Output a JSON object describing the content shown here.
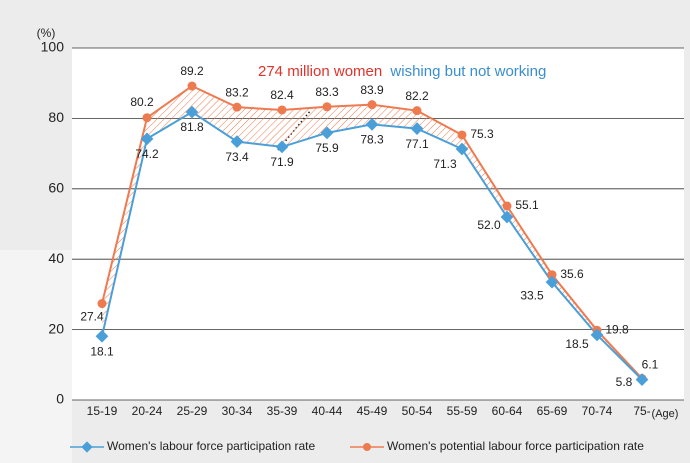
{
  "chart_data": {
    "type": "line",
    "y_unit_label": "(%)",
    "x_unit_label": "(Age)",
    "annotation": {
      "highlight": "274 million women",
      "text": "wishing but not working"
    },
    "categories": [
      "15-19",
      "20-24",
      "25-29",
      "30-34",
      "35-39",
      "40-44",
      "45-49",
      "50-54",
      "55-59",
      "60-64",
      "65-69",
      "70-74",
      "75-"
    ],
    "series": [
      {
        "name": "Women's labour force participation rate",
        "color": "#4a9fd8",
        "values": [
          18.1,
          74.2,
          81.8,
          73.4,
          71.9,
          75.9,
          78.3,
          77.1,
          71.3,
          52.0,
          33.5,
          18.5,
          5.8
        ],
        "value_labels": [
          "18.1",
          "74.2",
          "81.8",
          "73.4",
          "71.9",
          "75.9",
          "78.3",
          "77.1",
          "71.3",
          "52.0",
          "33.5",
          "18.5",
          "5.8"
        ]
      },
      {
        "name": "Women's potential labour force participation rate",
        "color": "#ee7a50",
        "values": [
          27.4,
          80.2,
          89.2,
          83.2,
          82.4,
          83.3,
          83.9,
          82.2,
          75.3,
          55.1,
          35.6,
          19.8,
          6.1
        ],
        "value_labels": [
          "27.4",
          "80.2",
          "89.2",
          "83.2",
          "82.4",
          "83.3",
          "83.9",
          "82.2",
          "75.3",
          "55.1",
          "35.6",
          "19.8",
          "6.1"
        ]
      }
    ],
    "ylim": [
      0,
      100
    ],
    "yticks": [
      0,
      20,
      40,
      60,
      80,
      100
    ],
    "grid": true
  }
}
